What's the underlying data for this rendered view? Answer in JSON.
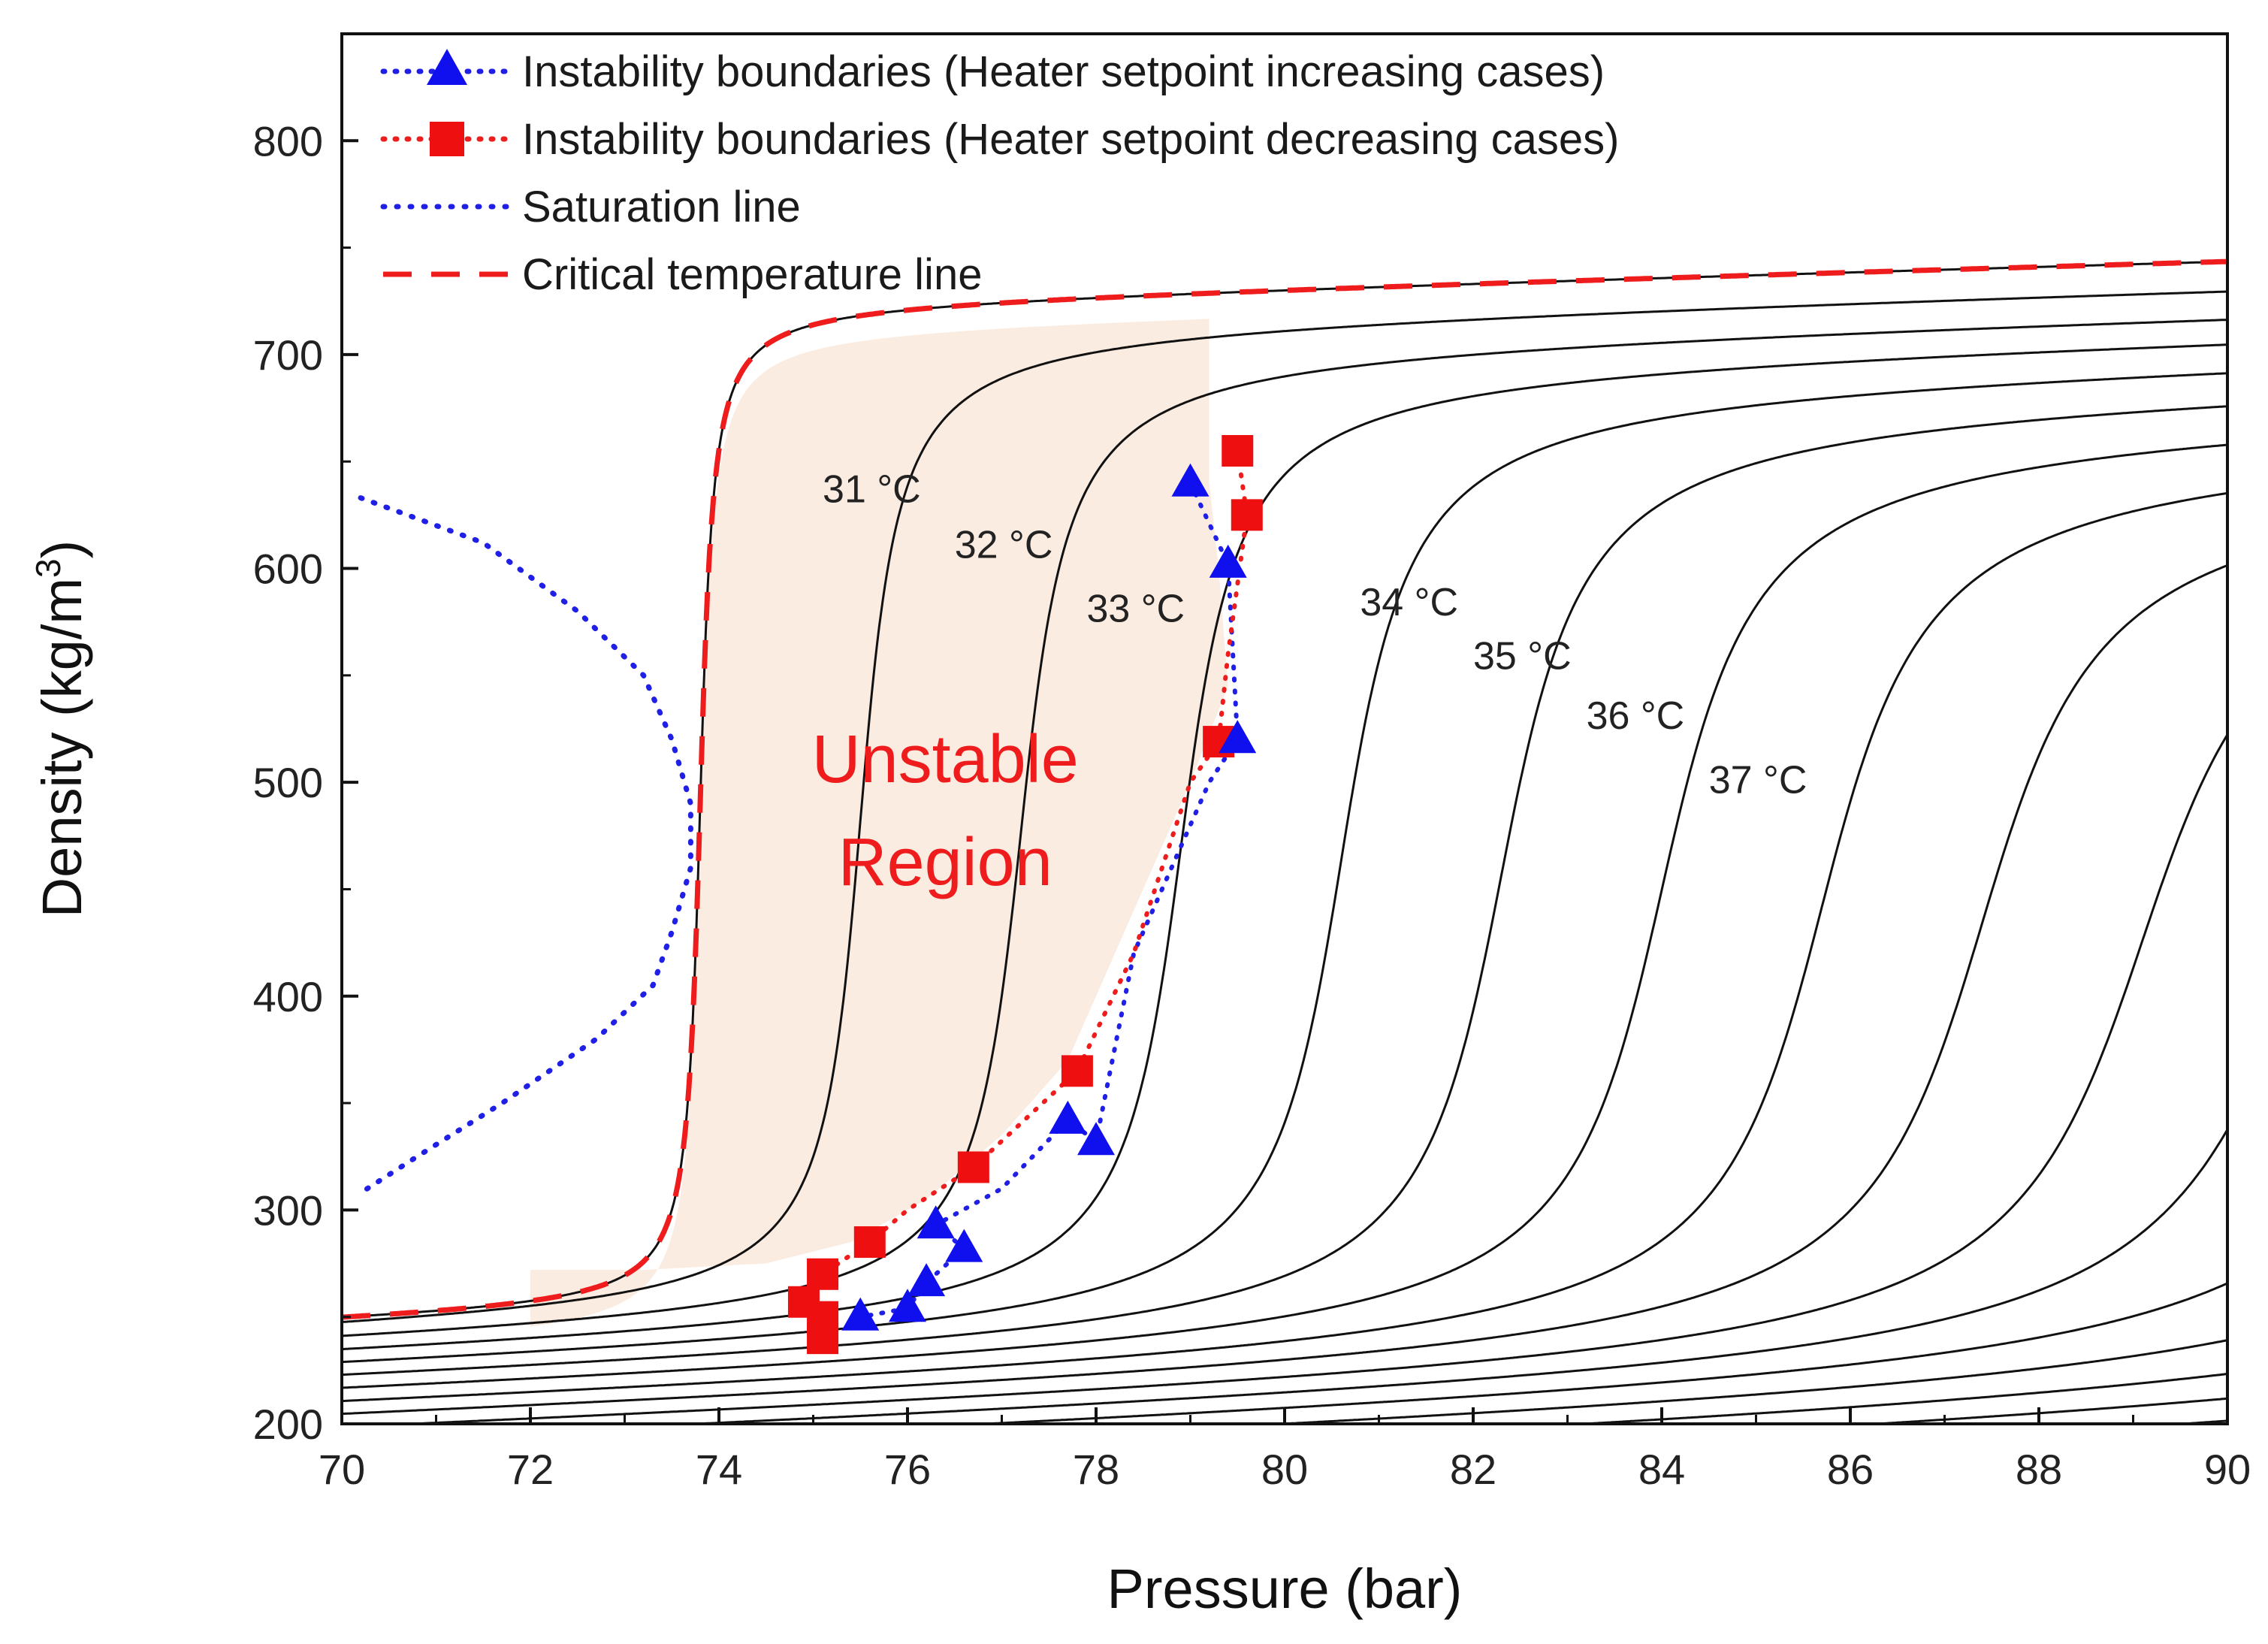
{
  "chart_data": {
    "type": "line",
    "title": "",
    "xlabel": "Pressure (bar)",
    "ylabel": "Density (kg/m³)",
    "ylabel_parts": {
      "main": "Density (kg/m",
      "sup": "3",
      "tail": ")"
    },
    "xlim": [
      70,
      90
    ],
    "ylim": [
      200,
      850
    ],
    "xticks": [
      70,
      72,
      74,
      76,
      78,
      80,
      82,
      84,
      86,
      88,
      90
    ],
    "yticks": [
      200,
      300,
      400,
      500,
      600,
      700,
      800
    ],
    "grid": false,
    "legend_position": "top-left",
    "legend": [
      {
        "key": "inc",
        "label": "Instability boundaries (Heater setpoint increasing cases)",
        "line_color": "#1f1fe6",
        "marker": "triangle",
        "marker_color": "#1010ee"
      },
      {
        "key": "dec",
        "label": "Instability boundaries (Heater setpoint decreasing cases)",
        "line_color": "#ee1c1c",
        "marker": "square",
        "marker_color": "#ee1010"
      },
      {
        "key": "sat",
        "label": "Saturation line",
        "line_color": "#1f1fe6",
        "marker": "none"
      },
      {
        "key": "crit",
        "label": "Critical temperature line",
        "line_color": "#ee1c1c",
        "marker": "none"
      }
    ],
    "isotherm_params": [
      {
        "a": 73.8,
        "k": 10.0,
        "hi": 725,
        "shi": 0.5
      },
      {
        "a": 75.5,
        "k": 3.5,
        "hi": 715,
        "shi": 0.45
      },
      {
        "a": 77.2,
        "k": 2.8,
        "hi": 705,
        "shi": 0.4
      },
      {
        "a": 78.9,
        "k": 2.3,
        "hi": 697,
        "shi": 0.35
      },
      {
        "a": 80.6,
        "k": 1.9,
        "hi": 688,
        "shi": 0.3
      },
      {
        "a": 82.3,
        "k": 1.6,
        "hi": 678,
        "shi": 0.27
      },
      {
        "a": 84.0,
        "k": 1.4,
        "hi": 667,
        "shi": 0.24
      },
      {
        "a": 85.7,
        "k": 1.25,
        "hi": 655,
        "shi": 0.22
      },
      {
        "a": 87.4,
        "k": 1.1,
        "hi": 643,
        "shi": 0.2
      },
      {
        "a": 89.1,
        "k": 1.0,
        "hi": 630,
        "shi": 0.18
      },
      {
        "a": 90.8,
        "k": 0.9,
        "hi": 617,
        "shi": 0.16
      },
      {
        "a": 92.6,
        "k": 0.82,
        "hi": 604,
        "shi": 0.15
      },
      {
        "a": 94.6,
        "k": 0.75,
        "hi": 592,
        "shi": 0.14
      },
      {
        "a": 96.8,
        "k": 0.68,
        "hi": 580,
        "shi": 0.13
      },
      {
        "a": 99.0,
        "k": 0.62,
        "hi": 568,
        "shi": 0.12
      },
      {
        "a": 101.5,
        "k": 0.56,
        "hi": 556,
        "shi": 0.11
      },
      {
        "a": 104.0,
        "k": 0.5,
        "hi": 545,
        "shi": 0.1
      },
      {
        "a": 106.5,
        "k": 0.46,
        "hi": 535,
        "shi": 0.1
      }
    ],
    "series": [
      {
        "name": "Instability boundaries (Heater setpoint increasing cases)",
        "points": [
          [
            79.0,
            640
          ],
          [
            79.4,
            602
          ],
          [
            79.5,
            520
          ],
          [
            77.7,
            342
          ],
          [
            78.0,
            332
          ],
          [
            76.6,
            282
          ],
          [
            76.3,
            293
          ],
          [
            76.2,
            266
          ],
          [
            76.0,
            254
          ],
          [
            75.5,
            250
          ]
        ],
        "line": [
          [
            79.0,
            640
          ],
          [
            79.4,
            602
          ],
          [
            79.5,
            520
          ],
          [
            79.2,
            500
          ],
          [
            78.4,
            420
          ],
          [
            78.0,
            332
          ],
          [
            77.7,
            342
          ],
          [
            77.0,
            310
          ],
          [
            76.3,
            293
          ],
          [
            76.6,
            282
          ],
          [
            76.2,
            266
          ],
          [
            76.0,
            254
          ],
          [
            75.5,
            250
          ]
        ]
      },
      {
        "name": "Instability boundaries (Heater setpoint decreasing cases)",
        "points": [
          [
            79.5,
            655
          ],
          [
            79.6,
            625
          ],
          [
            79.3,
            519
          ],
          [
            77.8,
            365
          ],
          [
            76.7,
            320
          ],
          [
            75.6,
            285
          ],
          [
            75.1,
            270
          ],
          [
            74.9,
            257
          ],
          [
            75.1,
            250
          ],
          [
            75.1,
            240
          ]
        ],
        "line": [
          [
            79.5,
            655
          ],
          [
            79.6,
            625
          ],
          [
            79.4,
            560
          ],
          [
            79.3,
            519
          ],
          [
            79.0,
            500
          ],
          [
            78.4,
            420
          ],
          [
            77.8,
            365
          ],
          [
            76.7,
            320
          ],
          [
            76.0,
            300
          ],
          [
            75.6,
            285
          ],
          [
            75.1,
            270
          ],
          [
            74.9,
            257
          ],
          [
            75.1,
            250
          ],
          [
            75.1,
            240
          ]
        ]
      },
      {
        "name": "Saturation line",
        "points": [
          [
            70.2,
            633
          ],
          [
            71.5,
            612
          ],
          [
            72.5,
            580
          ],
          [
            73.2,
            550
          ],
          [
            73.5,
            520
          ],
          [
            73.7,
            490
          ],
          [
            73.7,
            460
          ],
          [
            73.5,
            430
          ],
          [
            73.3,
            405
          ],
          [
            72.7,
            380
          ],
          [
            71.7,
            350
          ],
          [
            70.8,
            325
          ],
          [
            70.2,
            308
          ]
        ]
      },
      {
        "name": "Critical temperature line",
        "from_isotherm": 0
      }
    ],
    "curve_labels": [
      {
        "text": "31 °C",
        "x": 75.1,
        "y": 631
      },
      {
        "text": "32 °C",
        "x": 76.5,
        "y": 605
      },
      {
        "text": "33 °C",
        "x": 77.9,
        "y": 575
      },
      {
        "text": "34 °C",
        "x": 80.8,
        "y": 578
      },
      {
        "text": "35 °C",
        "x": 82.0,
        "y": 553
      },
      {
        "text": "36 °C",
        "x": 83.2,
        "y": 525
      },
      {
        "text": "37 °C",
        "x": 84.5,
        "y": 495
      }
    ],
    "region_label": {
      "line1": "Unstable",
      "line2": "Region",
      "x": 76.4,
      "y1": 500,
      "y2": 452
    },
    "unstable_region_fill": "#fbece1"
  }
}
